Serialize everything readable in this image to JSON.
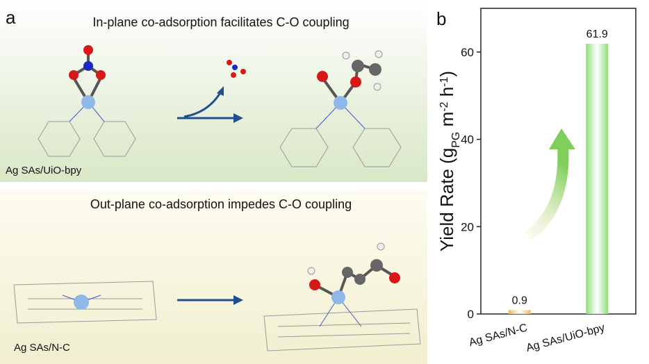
{
  "panel_a": {
    "label": "a",
    "top_title": "In-plane co-adsorption facilitates C-O coupling",
    "top_caption": "Ag SAs/UiO-bpy",
    "bottom_title": "Out-plane co-adsorption impedes C-O coupling",
    "bottom_caption": "Ag SAs/N-C"
  },
  "chart_data": {
    "type": "bar",
    "label": "b",
    "y_label_parts": [
      "Yield Rate (g",
      "PG",
      " m",
      "-2",
      " h",
      "-1",
      ")"
    ],
    "categories": [
      "Ag SAs/N-C",
      "Ag SAs/UiO-bpy"
    ],
    "values": [
      0.9,
      61.9
    ],
    "colors": [
      "#f2b84c",
      "#8fdc78"
    ],
    "ylim": [
      0,
      70
    ],
    "yticks": [
      0,
      20,
      40,
      60
    ]
  }
}
